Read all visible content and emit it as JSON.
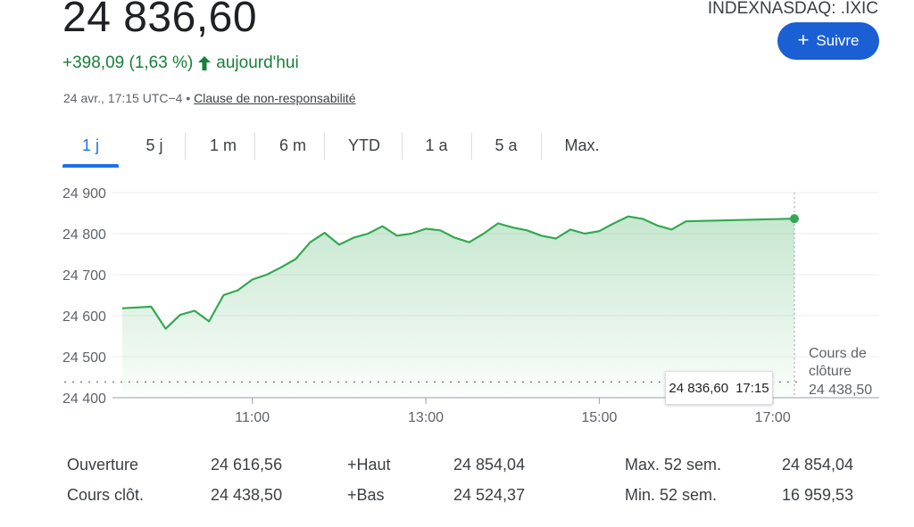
{
  "quote": {
    "price": "24 836,60",
    "ticker": "INDEXNASDAQ: .IXIC",
    "follow_label": "Suivre",
    "change": "+398,09 (1,63 %)",
    "change_suffix": "aujourd'hui",
    "timestamp": "24 avr., 17:15 UTC−4 • ",
    "disclaimer": "Clause de non-responsabilité",
    "accent_color": "#1a73e8",
    "positive_color": "#188038"
  },
  "tabs": [
    {
      "label": "1 j",
      "active": true
    },
    {
      "label": "5 j"
    },
    {
      "label": "1 m"
    },
    {
      "label": "6 m"
    },
    {
      "label": "YTD"
    },
    {
      "label": "1 a"
    },
    {
      "label": "5 a"
    },
    {
      "label": "Max."
    }
  ],
  "chart_data": {
    "type": "area",
    "y_ticks": [
      "24 900",
      "24 800",
      "24 700",
      "24 600",
      "24 500",
      "24 400"
    ],
    "y_values": [
      24900,
      24800,
      24700,
      24600,
      24500,
      24400
    ],
    "x_ticks": [
      "11:00",
      "13:00",
      "15:00",
      "17:00"
    ],
    "ylim": [
      24400,
      24900
    ],
    "grid": true,
    "previous_close": 24438.5,
    "previous_close_label_line1": "Cours de",
    "previous_close_label_line2": "clôture",
    "previous_close_value": "24 438,50",
    "tooltip_value": "24 836,60",
    "tooltip_time": "17:15",
    "series": [
      {
        "x": [
          "09:30",
          "09:40",
          "09:50",
          "10:00",
          "10:10",
          "10:20",
          "10:30",
          "10:40",
          "10:50",
          "11:00",
          "11:10",
          "11:20",
          "11:30",
          "11:40",
          "11:50",
          "12:00",
          "12:10",
          "12:20",
          "12:30",
          "12:40",
          "12:50",
          "13:00",
          "13:10",
          "13:20",
          "13:30",
          "13:40",
          "13:50",
          "14:00",
          "14:10",
          "14:20",
          "14:30",
          "14:40",
          "14:50",
          "15:00",
          "15:10",
          "15:20",
          "15:30",
          "15:40",
          "15:50",
          "16:00",
          "17:15"
        ],
        "values": [
          24618,
          24620,
          24622,
          24568,
          24602,
          24612,
          24586,
          24650,
          24662,
          24688,
          24700,
          24718,
          24738,
          24779,
          24802,
          24773,
          24790,
          24800,
          24818,
          24795,
          24800,
          24812,
          24808,
          24790,
          24779,
          24800,
          24825,
          24815,
          24808,
          24795,
          24788,
          24810,
          24800,
          24806,
          24825,
          24842,
          24836,
          24820,
          24810,
          24830,
          24836.6
        ]
      }
    ]
  },
  "stats": {
    "col1": [
      {
        "label": "Ouverture",
        "value": "24 616,56"
      },
      {
        "label": "Cours clôt.",
        "value": "24 438,50"
      }
    ],
    "col2": [
      {
        "label": "+Haut",
        "value": "24 854,04"
      },
      {
        "label": "+Bas",
        "value": "24 524,37"
      }
    ],
    "col3": [
      {
        "label": "Max. 52 sem.",
        "value": "24 854,04"
      },
      {
        "label": "Min. 52 sem.",
        "value": "16 959,53"
      }
    ]
  }
}
